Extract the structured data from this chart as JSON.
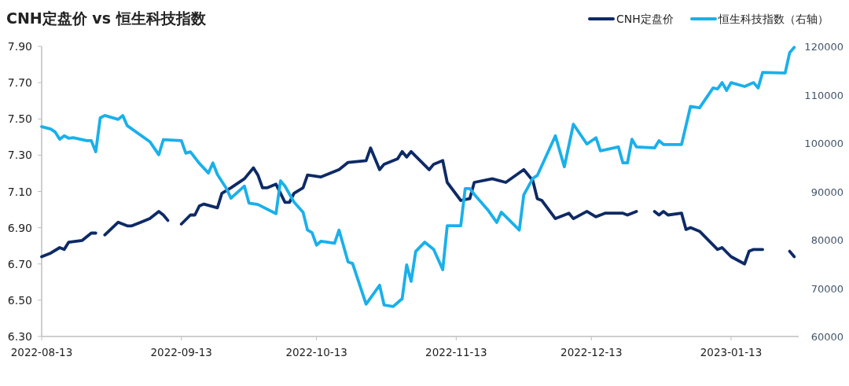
{
  "chart_data": {
    "type": "line",
    "title": "CNH定盘价 vs 恒生科技指数",
    "legend": "top right",
    "line_style": "solid",
    "marker": "none",
    "grid": false,
    "xlim": [
      "2022-08-13",
      "2023-01-28"
    ],
    "xticks": [
      "2022-08-13",
      "2022-09-13",
      "2022-10-13",
      "2022-11-13",
      "2022-12-13",
      "2023-01-13"
    ],
    "ylim": [
      6.3,
      7.9
    ],
    "yticks": [
      {
        "value": 6.3,
        "label": "6.30"
      },
      {
        "value": 6.5,
        "label": "6.50"
      },
      {
        "value": 6.7,
        "label": "6.70"
      },
      {
        "value": 6.9,
        "label": "6.90"
      },
      {
        "value": 7.1,
        "label": "7.10"
      },
      {
        "value": 7.3,
        "label": "7.30"
      },
      {
        "value": 7.5,
        "label": "7.50"
      },
      {
        "value": 7.7,
        "label": "7.70"
      },
      {
        "value": 7.9,
        "label": "7.90"
      }
    ],
    "y2lim": [
      60000,
      120000
    ],
    "y2ticks": [
      60000,
      70000,
      80000,
      90000,
      100000,
      110000,
      120000
    ],
    "series": [
      {
        "name": "CNH定盘价",
        "color": "#0e2a66",
        "x": [
          "2022-08-13",
          "2022-08-15",
          "2022-08-17",
          "2022-08-18",
          "2022-08-19",
          "2022-08-22",
          "2022-08-24",
          "2022-08-25",
          "2022-08-26",
          "2022-08-27",
          "2022-08-30",
          "2022-09-01",
          "2022-09-02",
          "2022-09-04",
          "2022-09-06",
          "2022-09-08",
          "2022-09-09",
          "2022-09-10",
          "2022-09-11",
          "2022-09-13",
          "2022-09-15",
          "2022-09-16",
          "2022-09-17",
          "2022-09-18",
          "2022-09-21",
          "2022-09-22",
          "2022-09-24",
          "2022-09-27",
          "2022-09-29",
          "2022-09-30",
          "2022-10-01",
          "2022-10-02",
          "2022-10-04",
          "2022-10-06",
          "2022-10-07",
          "2022-10-08",
          "2022-10-10",
          "2022-10-11",
          "2022-10-14",
          "2022-10-18",
          "2022-10-20",
          "2022-10-24",
          "2022-10-25",
          "2022-10-27",
          "2022-10-28",
          "2022-10-31",
          "2022-11-01",
          "2022-11-02",
          "2022-11-03",
          "2022-11-07",
          "2022-11-08",
          "2022-11-10",
          "2022-11-11",
          "2022-11-14",
          "2022-11-16",
          "2022-11-17",
          "2022-11-21",
          "2022-11-24",
          "2022-11-28",
          "2022-11-30",
          "2022-12-01",
          "2022-12-02",
          "2022-12-05",
          "2022-12-08",
          "2022-12-09",
          "2022-12-12",
          "2022-12-14",
          "2022-12-16",
          "2022-12-20",
          "2022-12-21",
          "2022-12-23",
          "2022-12-26",
          "2022-12-27",
          "2022-12-28",
          "2022-12-29",
          "2022-12-30",
          "2023-01-02",
          "2023-01-03",
          "2023-01-04",
          "2023-01-06",
          "2023-01-10",
          "2023-01-11",
          "2023-01-13",
          "2023-01-16",
          "2023-01-17",
          "2023-01-18",
          "2023-01-20",
          "2023-01-23",
          "2023-01-26",
          "2023-01-27"
        ],
        "values": [
          6.74,
          6.76,
          6.79,
          6.78,
          6.82,
          6.83,
          6.87,
          6.87,
          null,
          6.86,
          6.93,
          6.91,
          6.91,
          6.93,
          6.95,
          6.99,
          6.97,
          6.94,
          null,
          6.92,
          6.97,
          6.97,
          7.02,
          7.03,
          7.01,
          7.09,
          7.12,
          7.17,
          7.23,
          7.19,
          7.12,
          7.12,
          7.14,
          7.04,
          7.04,
          7.09,
          7.12,
          7.19,
          7.18,
          7.22,
          7.26,
          7.27,
          7.34,
          7.22,
          7.25,
          7.28,
          7.32,
          7.29,
          7.32,
          7.22,
          7.25,
          7.27,
          7.15,
          7.05,
          7.06,
          7.15,
          7.17,
          7.15,
          7.22,
          7.16,
          7.06,
          7.05,
          6.95,
          6.98,
          6.95,
          6.99,
          6.96,
          6.98,
          6.98,
          6.97,
          6.99,
          null,
          6.99,
          6.97,
          6.99,
          6.97,
          6.98,
          6.89,
          6.9,
          6.88,
          6.78,
          6.79,
          6.74,
          6.7,
          6.77,
          6.78,
          6.78,
          null,
          6.77,
          6.74
        ]
      },
      {
        "name": "恒生科技指数（右轴）",
        "color": "#1ab0ea",
        "axis": "y2",
        "x": [
          "2022-08-13",
          "2022-08-15",
          "2022-08-16",
          "2022-08-17",
          "2022-08-18",
          "2022-08-19",
          "2022-08-20",
          "2022-08-23",
          "2022-08-24",
          "2022-08-25",
          "2022-08-26",
          "2022-08-27",
          "2022-08-30",
          "2022-08-31",
          "2022-09-01",
          "2022-09-06",
          "2022-09-08",
          "2022-09-09",
          "2022-09-13",
          "2022-09-14",
          "2022-09-15",
          "2022-09-17",
          "2022-09-19",
          "2022-09-20",
          "2022-09-21",
          "2022-09-23",
          "2022-09-24",
          "2022-09-27",
          "2022-09-28",
          "2022-09-30",
          "2022-10-04",
          "2022-10-05",
          "2022-10-06",
          "2022-10-08",
          "2022-10-10",
          "2022-10-11",
          "2022-10-12",
          "2022-10-13",
          "2022-10-14",
          "2022-10-17",
          "2022-10-18",
          "2022-10-20",
          "2022-10-21",
          "2022-10-24",
          "2022-10-27",
          "2022-10-28",
          "2022-10-30",
          "2022-11-01",
          "2022-11-02",
          "2022-11-03",
          "2022-11-04",
          "2022-11-06",
          "2022-11-08",
          "2022-11-10",
          "2022-11-11",
          "2022-11-14",
          "2022-11-15",
          "2022-11-16",
          "2022-11-17",
          "2022-11-20",
          "2022-11-22",
          "2022-11-23",
          "2022-11-27",
          "2022-11-28",
          "2022-11-30",
          "2022-12-01",
          "2022-12-05",
          "2022-12-07",
          "2022-12-09",
          "2022-12-12",
          "2022-12-14",
          "2022-12-15",
          "2022-12-19",
          "2022-12-20",
          "2022-12-21",
          "2022-12-22",
          "2022-12-23",
          "2022-12-27",
          "2022-12-28",
          "2022-12-29",
          "2023-01-02",
          "2023-01-04",
          "2023-01-06",
          "2023-01-09",
          "2023-01-10",
          "2023-01-11",
          "2023-01-12",
          "2023-01-13",
          "2023-01-16",
          "2023-01-18",
          "2023-01-19",
          "2023-01-20",
          "2023-01-25",
          "2023-01-26",
          "2023-01-27"
        ],
        "values": [
          103400,
          102900,
          102300,
          100800,
          101500,
          101000,
          101100,
          100500,
          100500,
          98200,
          105200,
          105700,
          104900,
          105700,
          103600,
          100300,
          97600,
          100700,
          100500,
          97900,
          98200,
          95800,
          93800,
          95900,
          93500,
          90600,
          88600,
          91100,
          87600,
          87300,
          85400,
          92200,
          91100,
          87800,
          85700,
          82000,
          81500,
          78900,
          79700,
          79300,
          82000,
          75400,
          75100,
          66700,
          70600,
          66500,
          66200,
          67800,
          74800,
          71400,
          77600,
          79500,
          78000,
          73800,
          82900,
          82900,
          90600,
          90600,
          89400,
          86200,
          83600,
          85700,
          82000,
          89300,
          92700,
          93300,
          101500,
          95100,
          103900,
          99800,
          101100,
          98400,
          99200,
          95900,
          95900,
          100800,
          99200,
          99000,
          100500,
          99700,
          99700,
          107600,
          107300,
          111400,
          111200,
          112500,
          110900,
          112500,
          111700,
          112500,
          111400,
          114600,
          114500,
          118700,
          119800
        ]
      }
    ]
  }
}
